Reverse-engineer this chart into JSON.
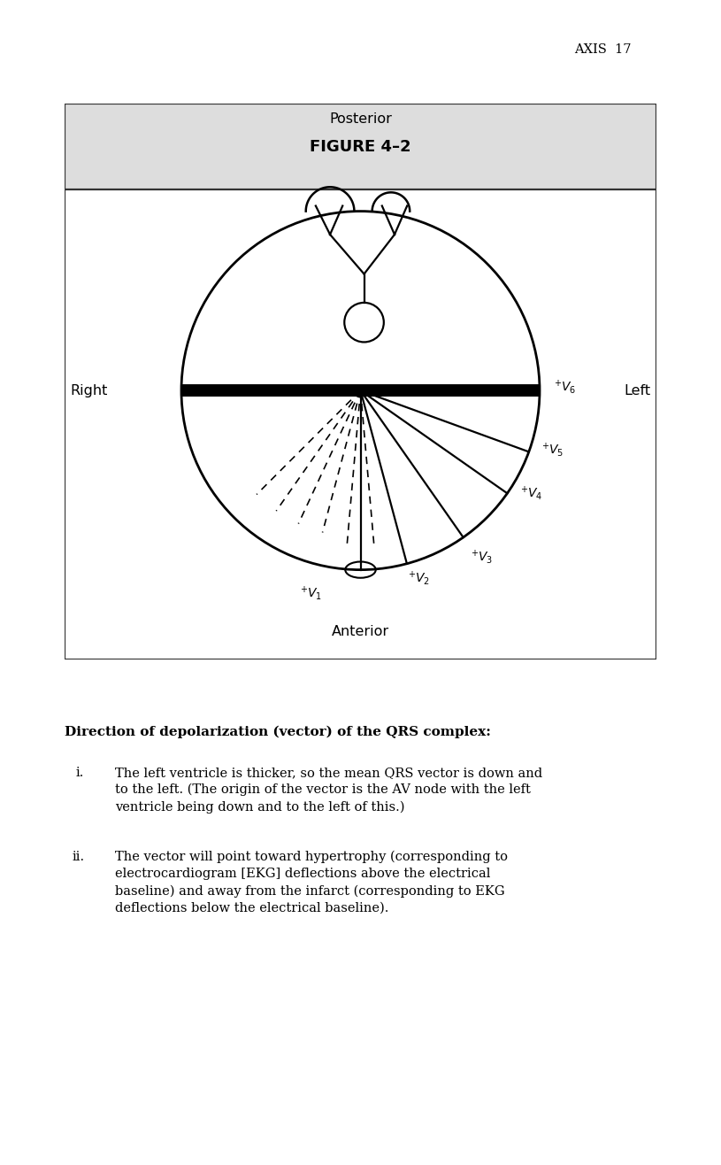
{
  "header_text": "AXIS  17",
  "figure_title": "FIGURE 4–2",
  "posterior_label": "Posterior",
  "anterior_label": "Anterior",
  "right_label": "Right",
  "left_label": "Left",
  "description_title": "Direction of depolarization (vector) of the QRS complex:",
  "item_i_label": "i.",
  "item_i": "The left ventricle is thicker, so the mean QRS vector is down and\nto the left. (The origin of the vector is the AV node with the left\nventricle being down and to the left of this.)",
  "item_ii_label": "ii.",
  "item_ii": "The vector will point toward hypertrophy (corresponding to\nelectrocardiogram [EKG] deflections above the electrical\nbaseline) and away from the infarct (corresponding to EKG\ndeflections below the electrical baseline).",
  "solid_fan_angles_deg": [
    -90,
    -75,
    -55,
    -35,
    -20
  ],
  "dashed_upper_angles_deg": [
    -135,
    -125,
    -115,
    -105
  ],
  "dashed_lower_angles_deg": [
    -95,
    -85
  ],
  "bg_color": "#ffffff",
  "header_bg": "#d8d8d8",
  "border_color": "#333333",
  "text_color": "#000000",
  "circle_r": 1.0
}
